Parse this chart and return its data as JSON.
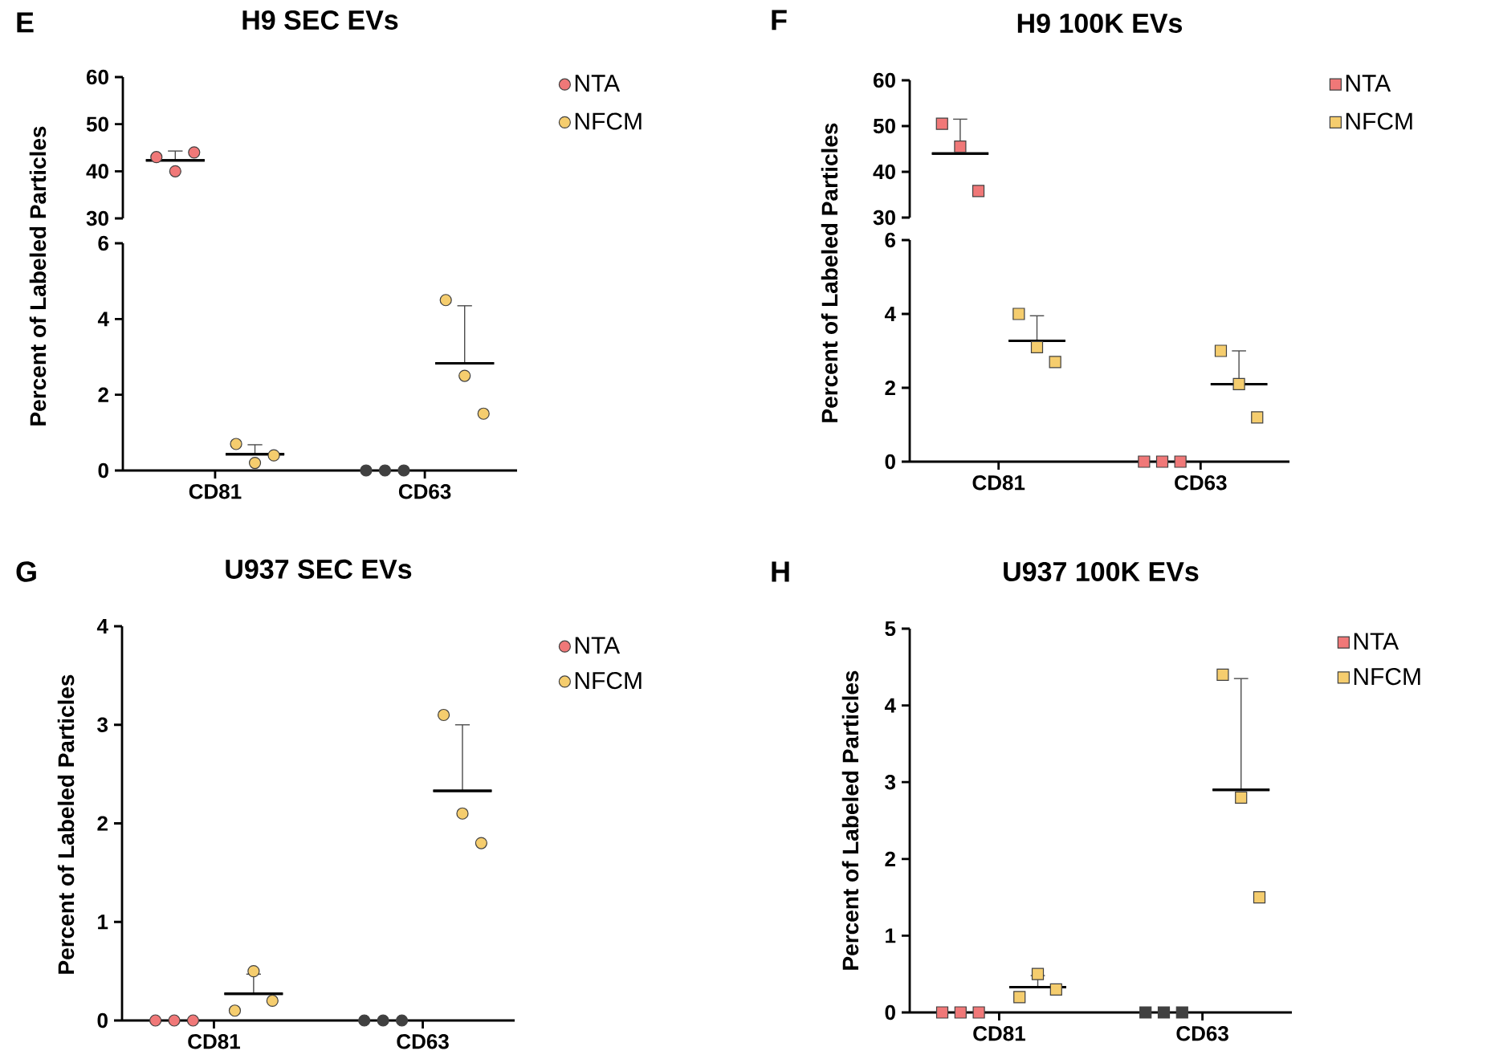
{
  "chart_data": [
    {
      "type": "scatter",
      "title": "H9 SEC EVs",
      "annotations": [
        "E"
      ],
      "categories": [
        "CD81",
        "CD63"
      ],
      "ylim": [
        30,
        60
      ],
      "yticks": [
        30,
        40,
        50,
        60
      ],
      "tick_labels": "y",
      "legend": "top right",
      "marker": "circle",
      "series": [
        {
          "name": "NTA",
          "color": "#f07878",
          "x": [
            "CD81",
            "CD81",
            "CD81"
          ],
          "values": [
            43,
            40,
            44
          ]
        },
        {
          "type": "box",
          "color": "#000000",
          "boxes": [
            {
              "low": 42.3,
              "q1": 42.3,
              "median": 42.3,
              "q3": 42.3,
              "high": 44.3
            },
            null
          ]
        }
      ]
    },
    {
      "type": "scatter",
      "ylabel": "Percent of Labeled Particles",
      "legend": "top right",
      "categories": [
        "CD81",
        "CD63"
      ],
      "ylim": [
        0,
        6
      ],
      "yticks": [
        0,
        2,
        4,
        6
      ],
      "marker": "circle",
      "series": [
        {
          "color": "#404040",
          "x": [
            "CD63",
            "CD63",
            "CD63"
          ],
          "values": [
            0,
            0,
            0
          ]
        },
        {
          "name": "NFCM",
          "color": "#f5cd6e",
          "x": [
            "CD81",
            "CD81",
            "CD81",
            "CD63",
            "CD63",
            "CD63"
          ],
          "values": [
            0.7,
            0.2,
            0.4,
            4.5,
            2.5,
            1.5
          ]
        },
        {
          "type": "box",
          "color": "#000000",
          "boxes": [
            {
              "low": 0.43,
              "q1": 0.43,
              "median": 0.43,
              "q3": 0.43,
              "high": 0.68
            },
            {
              "low": 2.83,
              "q1": 2.83,
              "median": 2.83,
              "q3": 2.83,
              "high": 4.35
            }
          ]
        }
      ]
    },
    {
      "type": "scatter",
      "title": "H9 100K EVs",
      "annotations": [
        "F"
      ],
      "categories": [
        "CD81",
        "CD63"
      ],
      "ylim": [
        30,
        60
      ],
      "yticks": [
        30,
        40,
        50,
        60
      ],
      "tick_labels": "y",
      "legend": "top right",
      "marker": "square",
      "series": [
        {
          "name": "NTA",
          "color": "#f07878",
          "x": [
            "CD81",
            "CD81",
            "CD81"
          ],
          "values": [
            50.5,
            45.5,
            35.8
          ]
        },
        {
          "type": "box",
          "color": "#000000",
          "boxes": [
            {
              "low": 44,
              "q1": 44,
              "median": 44,
              "q3": 44,
              "high": 51.5
            },
            null
          ]
        }
      ]
    },
    {
      "type": "scatter",
      "ylabel": "Percent of Labeled Particles",
      "legend": "top right",
      "categories": [
        "CD81",
        "CD63"
      ],
      "ylim": [
        0,
        6
      ],
      "yticks": [
        0,
        2,
        4,
        6
      ],
      "marker": "square",
      "series": [
        {
          "color": "#f07878",
          "x": [
            "CD63",
            "CD63",
            "CD63"
          ],
          "values": [
            0,
            0,
            0
          ]
        },
        {
          "name": "NFCM",
          "color": "#f5cd6e",
          "x": [
            "CD81",
            "CD81",
            "CD81",
            "CD63",
            "CD63",
            "CD63"
          ],
          "values": [
            4.0,
            3.1,
            2.7,
            3.0,
            2.1,
            1.2
          ]
        },
        {
          "type": "box",
          "color": "#000000",
          "boxes": [
            {
              "low": 3.27,
              "q1": 3.27,
              "median": 3.27,
              "q3": 3.27,
              "high": 3.95
            },
            {
              "low": 2.1,
              "q1": 2.1,
              "median": 2.1,
              "q3": 2.1,
              "high": 3.0
            }
          ]
        }
      ]
    },
    {
      "type": "scatter",
      "title": "U937 SEC EVs",
      "annotations": [
        "G"
      ],
      "ylabel": "Percent of Labeled Particles",
      "legend": "top right",
      "categories": [
        "CD81",
        "CD63"
      ],
      "ylim": [
        0,
        4
      ],
      "yticks": [
        0,
        1,
        2,
        3,
        4
      ],
      "marker": "circle",
      "series": [
        {
          "name": "NTA",
          "color": "#f07878",
          "colors": [
            "#f07878",
            "#f07878",
            "#f07878",
            "#404040",
            "#404040",
            "#404040"
          ],
          "x": [
            "CD81",
            "CD81",
            "CD81",
            "CD63",
            "CD63",
            "CD63"
          ],
          "values": [
            0,
            0,
            0,
            0,
            0,
            0
          ]
        },
        {
          "name": "NFCM",
          "color": "#f5cd6e",
          "x": [
            "CD81",
            "CD81",
            "CD81",
            "CD63",
            "CD63",
            "CD63"
          ],
          "values": [
            0.1,
            0.5,
            0.2,
            3.1,
            2.1,
            1.8
          ]
        },
        {
          "type": "box",
          "color": "#000000",
          "boxes": [
            {
              "low": 0.27,
              "q1": 0.27,
              "median": 0.27,
              "q3": 0.27,
              "high": 0.47
            },
            {
              "low": 2.33,
              "q1": 2.33,
              "median": 2.33,
              "q3": 2.33,
              "high": 3.0
            }
          ]
        }
      ]
    },
    {
      "type": "scatter",
      "title": "U937 100K EVs",
      "annotations": [
        "H"
      ],
      "ylabel": "Percent of Labeled Particles",
      "legend": "top right",
      "categories": [
        "CD81",
        "CD63"
      ],
      "ylim": [
        0,
        5
      ],
      "yticks": [
        0,
        1,
        2,
        3,
        4,
        5
      ],
      "marker": "square",
      "series": [
        {
          "name": "NTA",
          "color": "#f07878",
          "colors": [
            "#f07878",
            "#f07878",
            "#f07878",
            "#404040",
            "#404040",
            "#404040"
          ],
          "x": [
            "CD81",
            "CD81",
            "CD81",
            "CD63",
            "CD63",
            "CD63"
          ],
          "values": [
            0,
            0,
            0,
            0,
            0,
            0
          ]
        },
        {
          "name": "NFCM",
          "color": "#f5cd6e",
          "x": [
            "CD81",
            "CD81",
            "CD81",
            "CD63",
            "CD63",
            "CD63"
          ],
          "values": [
            0.2,
            0.5,
            0.3,
            4.4,
            2.8,
            1.5
          ]
        },
        {
          "type": "box",
          "color": "#000000",
          "boxes": [
            {
              "low": 0.33,
              "q1": 0.33,
              "median": 0.33,
              "q3": 0.33,
              "high": 0.48
            },
            {
              "low": 2.9,
              "q1": 2.9,
              "median": 2.9,
              "q3": 2.9,
              "high": 4.35
            }
          ]
        }
      ]
    }
  ]
}
